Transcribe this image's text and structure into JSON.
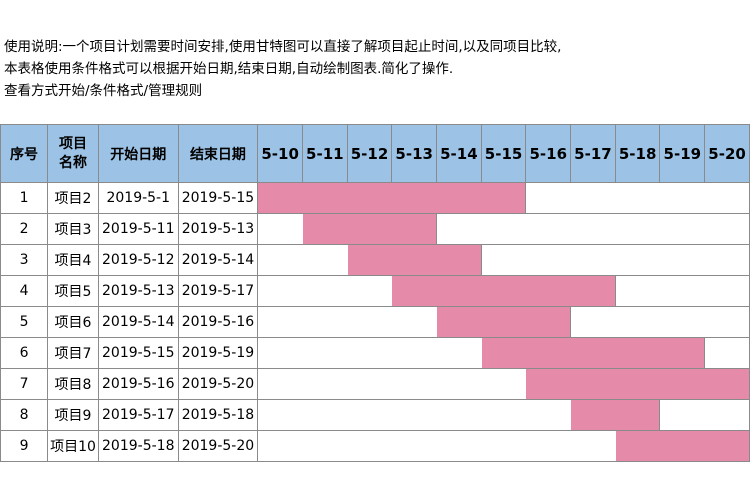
{
  "notes": [
    "使用说明:一个项目计划需要时间安排,使用甘特图可以直接了解项目起止时间,以及同项目比较,",
    "本表格使用条件格式可以根据开始日期,结束日期,自动绘制图表.简化了操作.",
    "查看方式开始/条件格式/管理规则"
  ],
  "headers": {
    "seq": "序号",
    "name_line1": "项目",
    "name_line2": "名称",
    "start": "开始日期",
    "end": "结束日期"
  },
  "days": [
    "5-10",
    "5-11",
    "5-12",
    "5-13",
    "5-14",
    "5-15",
    "5-16",
    "5-17",
    "5-18",
    "5-19",
    "5-20"
  ],
  "colors": {
    "header_bg": "#9cc3e6",
    "bar": "#e68aaa",
    "grid": "#8a8a8a"
  },
  "rows": [
    {
      "seq": "1",
      "name": "项目2",
      "start": "2019-5-1",
      "end": "2019-5-15",
      "bar_from": "5-10",
      "bar_to": "5-15"
    },
    {
      "seq": "2",
      "name": "项目3",
      "start": "2019-5-11",
      "end": "2019-5-13",
      "bar_from": "5-11",
      "bar_to": "5-13"
    },
    {
      "seq": "3",
      "name": "项目4",
      "start": "2019-5-12",
      "end": "2019-5-14",
      "bar_from": "5-12",
      "bar_to": "5-14"
    },
    {
      "seq": "4",
      "name": "项目5",
      "start": "2019-5-13",
      "end": "2019-5-17",
      "bar_from": "5-13",
      "bar_to": "5-17"
    },
    {
      "seq": "5",
      "name": "项目6",
      "start": "2019-5-14",
      "end": "2019-5-16",
      "bar_from": "5-14",
      "bar_to": "5-16"
    },
    {
      "seq": "6",
      "name": "项目7",
      "start": "2019-5-15",
      "end": "2019-5-19",
      "bar_from": "5-15",
      "bar_to": "5-19"
    },
    {
      "seq": "7",
      "name": "项目8",
      "start": "2019-5-16",
      "end": "2019-5-20",
      "bar_from": "5-16",
      "bar_to": "5-20"
    },
    {
      "seq": "8",
      "name": "项目9",
      "start": "2019-5-17",
      "end": "2019-5-18",
      "bar_from": "5-17",
      "bar_to": "5-18"
    },
    {
      "seq": "9",
      "name": "项目10",
      "start": "2019-5-18",
      "end": "2019-5-20",
      "bar_from": "5-18",
      "bar_to": "5-20"
    }
  ]
}
